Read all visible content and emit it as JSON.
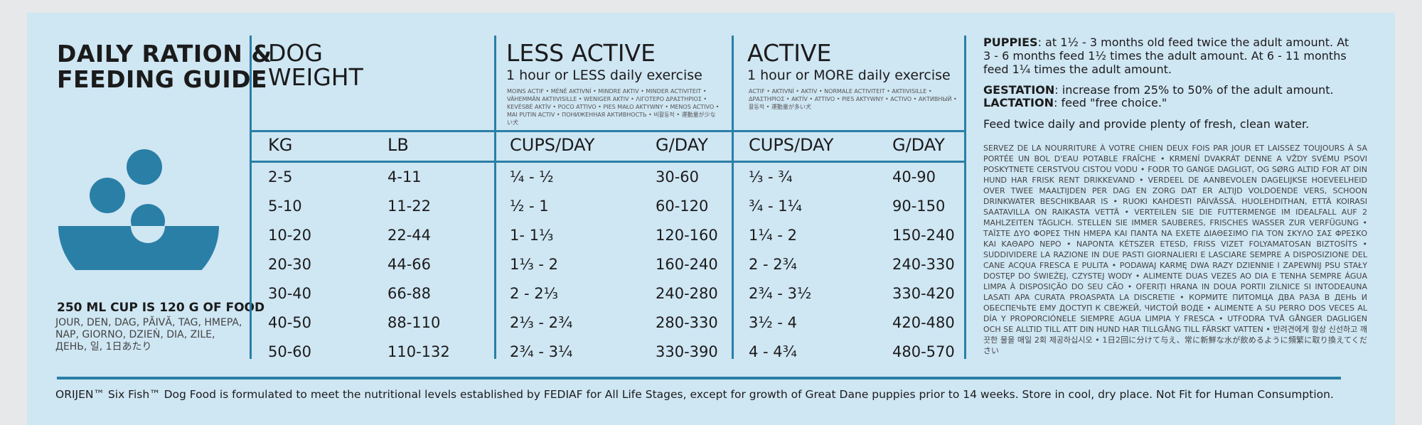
{
  "left": {
    "title_line1": "DAILY RATION &",
    "title_line2": "FEEDING GUIDE",
    "cup_note": "250 ML CUP IS 120 G OF FOOD",
    "cup_langs": "JOUR, DEN, DAG, PĂIVĂ, TAG, HMEPA, NAP, GIORNO, DZIEŃ, DIA, ZILE, ДЕНЬ, 일, 1日あたり",
    "logo_color": "#2a7fa6"
  },
  "dog_weight": {
    "title_line1": "DOG",
    "title_line2": "WEIGHT",
    "kg": "KG",
    "lb": "LB"
  },
  "less_active": {
    "title": "LESS ACTIVE",
    "subtitle": "1 hour or LESS daily exercise",
    "langs": "MOINS ACTIF • MÉNĚ AKTIVNÍ • MINDRE AKTIV • MINDER ACTIVITEIT • VÄHEMMÄN AKTIIVISILLE • WENIGER AKTIV • ΛΙΓΟΤΕΡΟ ΔΡΑΣΤΗΡΙΟΣ • KEVÉSBÉ AKTÍV • POCO ATTIVO • PIES MAŁO AKTYWNY • MENOS ACTIVO • MAI PUTIN ACTIV • ПОНИЖЕННАЯ АКТИВНОСТЬ • 비활동적 • 運動量が少ない犬",
    "cups": "CUPS/DAY",
    "gday": "G/DAY"
  },
  "active": {
    "title": "ACTIVE",
    "subtitle": "1 hour or MORE daily exercise",
    "langs": "ACTIF • AKTIVNÍ • AKTIV • NORMALE ACTIVITEIT • AKTIIVISILLE • ΔΡΑΣΤΗΡΙΟΣ • AKTÍV • ATTIVO • PIES AKTYWNY • ACTIVO • АКТИВНЫЙ • 활동적 • 運動量が多い犬",
    "cups": "CUPS/DAY",
    "gday": "G/DAY"
  },
  "rows": [
    {
      "kg": "2-5",
      "lb": "4-11",
      "less_cups": "¼ - ½",
      "less_g": "30-60",
      "active_cups": "⅓ - ¾",
      "active_g": "40-90"
    },
    {
      "kg": "5-10",
      "lb": "11-22",
      "less_cups": "½ - 1",
      "less_g": "60-120",
      "active_cups": "¾ - 1¼",
      "active_g": "90-150"
    },
    {
      "kg": "10-20",
      "lb": "22-44",
      "less_cups": "1- 1⅓",
      "less_g": "120-160",
      "active_cups": "1¼ - 2",
      "active_g": "150-240"
    },
    {
      "kg": "20-30",
      "lb": "44-66",
      "less_cups": "1⅓ - 2",
      "less_g": "160-240",
      "active_cups": "2 - 2¾",
      "active_g": "240-330"
    },
    {
      "kg": "30-40",
      "lb": "66-88",
      "less_cups": "2 - 2⅓",
      "less_g": "240-280",
      "active_cups": "2¾ - 3½",
      "active_g": "330-420"
    },
    {
      "kg": "40-50",
      "lb": "88-110",
      "less_cups": "2⅓ - 2¾",
      "less_g": "280-330",
      "active_cups": "3½ - 4",
      "active_g": "420-480"
    },
    {
      "kg": "50-60",
      "lb": "110-132",
      "less_cups": "2¾ - 3¼",
      "less_g": "330-390",
      "active_cups": "4 - 4¾",
      "active_g": "480-570"
    }
  ],
  "right": {
    "puppies_label": "PUPPIES",
    "puppies_text": ": at 1½ - 3 months old feed twice the adult amount. At 3 - 6 months feed 1½ times the adult amount. At 6 - 11 months feed 1¼ times the adult amount.",
    "gestation_label": "GESTATION",
    "gestation_text": ": increase from 25% to 50% of the adult amount.",
    "lactation_label": "LACTATION",
    "lactation_text": ": feed \"free choice.\"",
    "feed_note": "Feed twice daily and provide plenty of fresh, clean water.",
    "multilang": "SERVEZ DE LA NOURRITURE À VOTRE CHIEN DEUX FOIS PAR JOUR ET LAISSEZ TOUJOURS À SA PORTÉE UN BOL D'EAU POTABLE FRAÎCHE • KRMENÍ DVAKRÁT DENNE A VŽDY SVÉMU PSOVI POSKYTNETE CERSTVOU CISTOU VODU • FODR TO GANGE DAGLIGT, OG SØRG ALTID FOR AT DIN HUND HAR FRISK RENT DRIKKEVAND • VERDEEL DE AANBEVOLEN DAGELIJKSE HOEVEELHEID OVER TWEE MAALTIJDEN PER DAG EN ZORG DAT ER ALTIJD VOLDOENDE VERS, SCHOON DRINKWATER BESCHIKBAAR IS • RUOKI KAHDESTI PÄIVÄSSÄ. HUOLEHDITHAN, ETTÄ KOIRASI SAATAVILLA ON RAIKASTA VETTÄ • VERTEILEN SIE DIE FUTTERMENGE IM IDEALFALL AUF 2 MAHLZEITEN TÄGLICH. STELLEN SIE IMMER SAUBERES, FRISCHES WASSER ZUR VERFÜGUNG • ΤΑΪΣΤΕ ΔΥΟ ΦΟΡΕΣ ΤΗΝ ΗΜΕΡΑ ΚΑΙ ΠΑΝΤΑ ΝΑ ΕΧΕΤΕ ΔΙΑΘΕΣΙΜΟ ΓΙΑ ΤΟΝ ΣΚΥΛΟ ΣΑΣ ΦΡΕΣΚΟ ΚΑΙ ΚΑΘΑΡΟ ΝΕΡΟ • NAPONTA KÉTSZER ETESD, FRISS VIZET FOLYAMATOSAN BIZTOSÍTS • SUDDIVIDERE LA RAZIONE IN DUE PASTI GIORNALIERI E LASCIARE SEMPRE A DISPOSIZIONE DEL CANE ACQUA FRESCA E PULITA • PODAWAJ KARMĘ DWA RAZY DZIENNIE I ZAPEWNIJ PSU STAŁY DOSTĘP DO ŚWIEŻEJ, CZYSTEJ WODY • ALIMENTE DUAS VEZES AO DIA E TENHA SEMPRE ÁGUA LIMPA À DISPOSIÇÃO DO SEU CÃO • OFERIȚI HRANA IN DOUA PORTII ZILNICE SI INTODEAUNA LASATI APA CURATA PROASPATA LA DISCRETIE • КОРМИТЕ ПИТОМЦА ДВА РАЗА В ДЕНЬ И ОБЕСПЕЧЬТЕ ЕМУ ДОСТУП К СВЕЖЕЙ, ЧИСТОЙ ВОДЕ • ALIMENTE A SU PERRO DOS VECES AL DÍA Y PROPORCIÓNELE SIEMPRE AGUA LIMPIA Y FRESCA • UTFODRA TVÅ GÅNGER DAGLIGEN OCH SE ALLTID TILL ATT DIN HUND HAR TILLGÅNG TILL FÄRSKT VATTEN • 반려견에게 항상 신선하고 깨끗한 물을 매일 2회 제공하십시오 • 1日2回に分けて与え、常に新鮮な水が飲めるように頻繁に取り換えてください"
  },
  "footer": "ORIJEN™ Six Fish™ Dog Food is formulated to meet the nutritional levels established by FEDIAF for All Life Stages, except for growth of Great Dane puppies prior to 14 weeks. Store in cool, dry place. Not Fit for Human Consumption."
}
